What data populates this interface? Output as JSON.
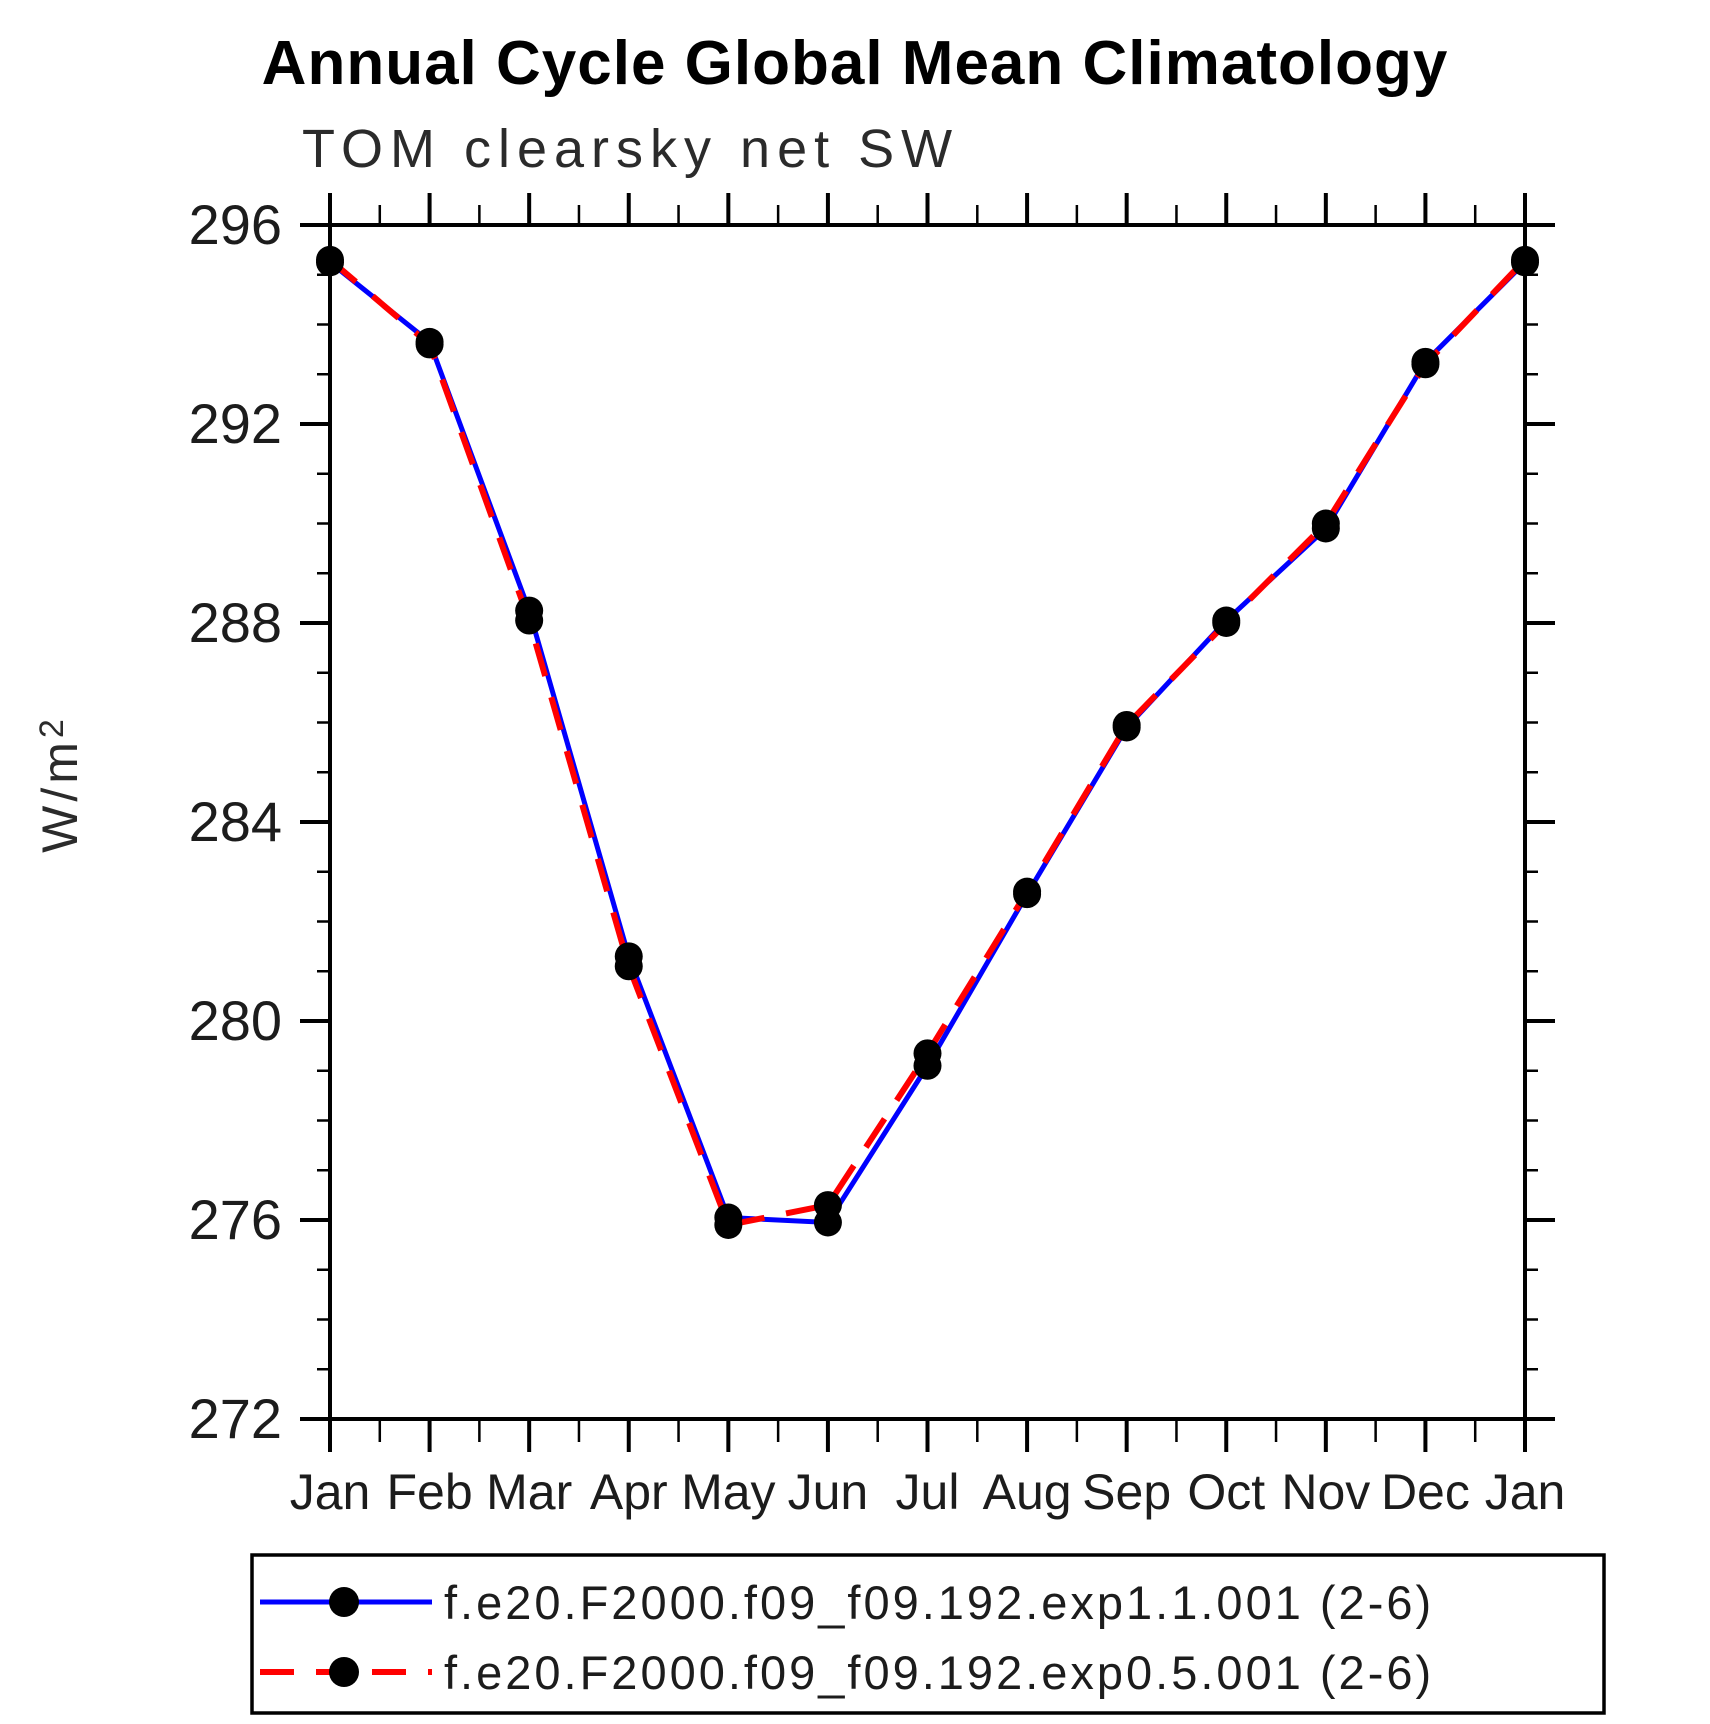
{
  "title": "Annual Cycle Global Mean Climatology",
  "subtitle": "TOM clearsky net SW",
  "y_axis": {
    "label_main": "W/m",
    "label_sup": "2",
    "min": 272,
    "max": 296,
    "major_step": 4,
    "minor_step": 1,
    "tick_labels": [
      "272",
      "276",
      "280",
      "284",
      "288",
      "292",
      "296"
    ]
  },
  "x_axis": {
    "tick_labels": [
      "Jan",
      "Feb",
      "Mar",
      "Apr",
      "May",
      "Jun",
      "Jul",
      "Aug",
      "Sep",
      "Oct",
      "Nov",
      "Dec",
      "Jan"
    ],
    "minor_ticks_per_interval": 1
  },
  "chart_data": {
    "type": "line",
    "title": "Annual Cycle Global Mean Climatology",
    "subtitle": "TOM clearsky net SW",
    "ylabel": "W/m²",
    "ylim": [
      272,
      296
    ],
    "y_major_step": 4,
    "y_minor_step": 1,
    "grid": false,
    "legend_position": "bottom",
    "x": [
      "Jan",
      "Feb",
      "Mar",
      "Apr",
      "May",
      "Jun",
      "Jul",
      "Aug",
      "Sep",
      "Oct",
      "Nov",
      "Dec",
      "Jan"
    ],
    "series": [
      {
        "name": "f.e20.F2000.f09_f09.192.exp1.1.001 (2-6)",
        "color": "#0000ff",
        "line_style": "solid",
        "marker": "circle",
        "marker_color": "#000000",
        "values": [
          295.25,
          293.65,
          288.25,
          281.3,
          276.05,
          275.95,
          279.1,
          282.55,
          285.9,
          288.05,
          289.9,
          293.25,
          295.25
        ]
      },
      {
        "name": "f.e20.F2000.f09_f09.192.exp0.5.001 (2-6)",
        "color": "#ff0000",
        "line_style": "dashed",
        "marker": "circle",
        "marker_color": "#000000",
        "values": [
          295.3,
          293.6,
          288.05,
          281.1,
          275.9,
          276.3,
          279.35,
          282.6,
          285.95,
          288.0,
          290.0,
          293.2,
          295.3
        ]
      }
    ]
  }
}
